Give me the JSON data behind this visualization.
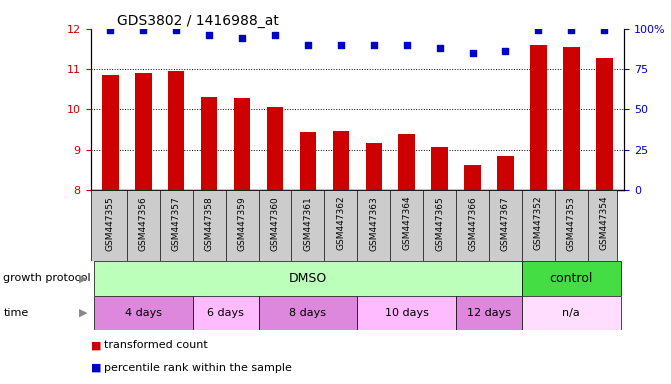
{
  "title": "GDS3802 / 1416988_at",
  "samples": [
    "GSM447355",
    "GSM447356",
    "GSM447357",
    "GSM447358",
    "GSM447359",
    "GSM447360",
    "GSM447361",
    "GSM447362",
    "GSM447363",
    "GSM447364",
    "GSM447365",
    "GSM447366",
    "GSM447367",
    "GSM447352",
    "GSM447353",
    "GSM447354"
  ],
  "bar_values": [
    10.85,
    10.9,
    10.95,
    10.3,
    10.28,
    10.05,
    9.45,
    9.47,
    9.18,
    9.38,
    9.08,
    8.62,
    8.85,
    11.6,
    11.55,
    11.28
  ],
  "dot_values": [
    99,
    99,
    99,
    96,
    94,
    96,
    90,
    90,
    90,
    90,
    88,
    85,
    86,
    99,
    99,
    99
  ],
  "ylim_left": [
    8,
    12
  ],
  "ylim_right": [
    0,
    100
  ],
  "yticks_left": [
    8,
    9,
    10,
    11,
    12
  ],
  "yticks_right": [
    0,
    25,
    50,
    75,
    100
  ],
  "bar_color": "#cc0000",
  "dot_color": "#0000cc",
  "grid_color": "#000000",
  "protocol_row": {
    "dmso_label": "DMSO",
    "control_label": "control",
    "dmso_color": "#bbffbb",
    "control_color": "#44dd44",
    "dmso_span": [
      0,
      13
    ],
    "control_span": [
      13,
      16
    ]
  },
  "time_row": {
    "groups": [
      {
        "label": "4 days",
        "span": [
          0,
          3
        ]
      },
      {
        "label": "6 days",
        "span": [
          3,
          5
        ]
      },
      {
        "label": "8 days",
        "span": [
          5,
          8
        ]
      },
      {
        "label": "10 days",
        "span": [
          8,
          11
        ]
      },
      {
        "label": "12 days",
        "span": [
          11,
          13
        ]
      },
      {
        "label": "n/a",
        "span": [
          13,
          16
        ]
      }
    ],
    "alt_colors": [
      "#ee88ee",
      "#ffbbff",
      "#ee88ee",
      "#ffbbff",
      "#ee88ee",
      "#ffddff"
    ],
    "color": "#dd88dd"
  },
  "legend_bar_label": "transformed count",
  "legend_dot_label": "percentile rank within the sample",
  "growth_protocol_label": "growth protocol",
  "time_label": "time",
  "background_color": "#ffffff",
  "tick_bg_color": "#cccccc"
}
